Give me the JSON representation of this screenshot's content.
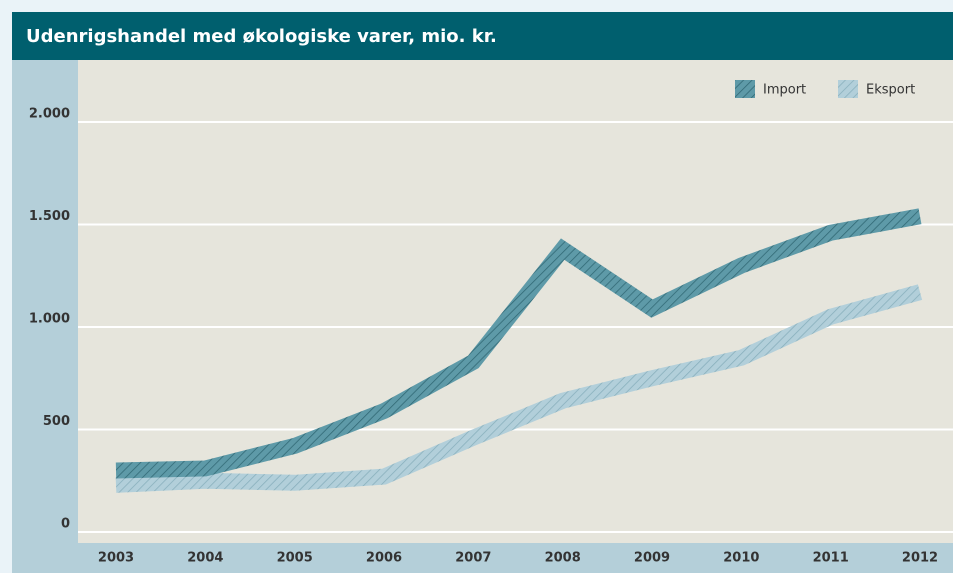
{
  "chart_data": {
    "type": "line",
    "title": "Udenrigshandel med økologiske varer, mio. kr.",
    "categories": [
      "2003",
      "2004",
      "2005",
      "2006",
      "2007",
      "2008",
      "2009",
      "2010",
      "2011",
      "2012"
    ],
    "series": [
      {
        "name": "Import",
        "color": "#5e9aa8",
        "values": [
          300,
          310,
          420,
          590,
          830,
          1380,
          1090,
          1300,
          1460,
          1540
        ]
      },
      {
        "name": "Eksport",
        "color": "#b2cfda",
        "values": [
          230,
          250,
          240,
          270,
          460,
          640,
          750,
          850,
          1050,
          1170
        ]
      }
    ],
    "ylim": [
      0,
      2000
    ],
    "yticks": [
      0,
      500,
      {
        "value": 1000,
        "label": "1.000"
      },
      {
        "value": 1500,
        "label": "1.500"
      },
      {
        "value": 2000,
        "label": "2.000"
      }
    ],
    "grid": true,
    "legend": "top-right"
  }
}
